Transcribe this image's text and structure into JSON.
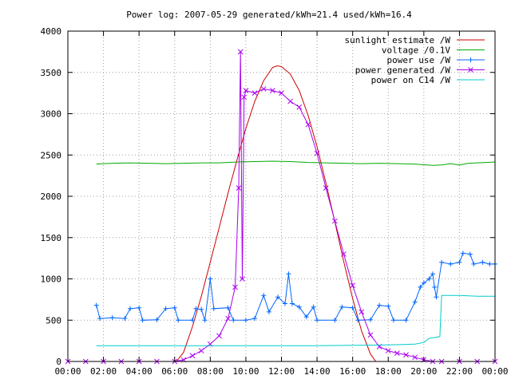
{
  "chart_data": {
    "type": "line",
    "title": "Power log: 2007-05-29 generated/kWh=21.4 used/kWh=16.4",
    "xlabel": "",
    "ylabel": "",
    "x_range_hours": [
      0,
      24
    ],
    "ylim": [
      0,
      4000
    ],
    "grid": true,
    "legend_position": "top-right",
    "x_ticks": [
      {
        "hour": 0,
        "label": "00:00"
      },
      {
        "hour": 2,
        "label": "02:00"
      },
      {
        "hour": 4,
        "label": "04:00"
      },
      {
        "hour": 6,
        "label": "06:00"
      },
      {
        "hour": 8,
        "label": "08:00"
      },
      {
        "hour": 10,
        "label": "10:00"
      },
      {
        "hour": 12,
        "label": "12:00"
      },
      {
        "hour": 14,
        "label": "14:00"
      },
      {
        "hour": 16,
        "label": "16:00"
      },
      {
        "hour": 18,
        "label": "18:00"
      },
      {
        "hour": 20,
        "label": "20:00"
      },
      {
        "hour": 22,
        "label": "22:00"
      },
      {
        "hour": 24,
        "label": "00:00"
      }
    ],
    "y_ticks": [
      {
        "value": 0,
        "label": "0"
      },
      {
        "value": 500,
        "label": "500"
      },
      {
        "value": 1000,
        "label": "1000"
      },
      {
        "value": 1500,
        "label": "1500"
      },
      {
        "value": 2000,
        "label": "2000"
      },
      {
        "value": 2500,
        "label": "2500"
      },
      {
        "value": 3000,
        "label": "3000"
      },
      {
        "value": 3500,
        "label": "3500"
      },
      {
        "value": 4000,
        "label": "4000"
      }
    ],
    "series": [
      {
        "name": "sunlight estimate /W",
        "color": "#cc0000",
        "marker": "none",
        "points": [
          [
            6.1,
            0
          ],
          [
            6.5,
            110
          ],
          [
            7.0,
            420
          ],
          [
            7.5,
            790
          ],
          [
            8.0,
            1200
          ],
          [
            8.5,
            1620
          ],
          [
            9.0,
            2040
          ],
          [
            9.5,
            2440
          ],
          [
            10.0,
            2820
          ],
          [
            10.5,
            3150
          ],
          [
            11.0,
            3400
          ],
          [
            11.5,
            3560
          ],
          [
            11.75,
            3580
          ],
          [
            12.0,
            3570
          ],
          [
            12.5,
            3480
          ],
          [
            13.0,
            3280
          ],
          [
            13.5,
            2980
          ],
          [
            14.0,
            2600
          ],
          [
            14.5,
            2160
          ],
          [
            15.0,
            1690
          ],
          [
            15.5,
            1210
          ],
          [
            16.0,
            760
          ],
          [
            16.5,
            370
          ],
          [
            17.0,
            90
          ],
          [
            17.3,
            0
          ]
        ]
      },
      {
        "name": "voltage /0.1V",
        "color": "#00aa00",
        "marker": "none",
        "points": [
          [
            1.6,
            2390
          ],
          [
            2.5,
            2400
          ],
          [
            3.5,
            2405
          ],
          [
            4.5,
            2400
          ],
          [
            5.5,
            2395
          ],
          [
            6.5,
            2400
          ],
          [
            7.5,
            2405
          ],
          [
            8.5,
            2405
          ],
          [
            9.5,
            2415
          ],
          [
            10.5,
            2420
          ],
          [
            11.5,
            2425
          ],
          [
            12.5,
            2420
          ],
          [
            13.5,
            2410
          ],
          [
            14.5,
            2405
          ],
          [
            15.5,
            2400
          ],
          [
            16.5,
            2395
          ],
          [
            17.5,
            2400
          ],
          [
            18.5,
            2395
          ],
          [
            19.5,
            2390
          ],
          [
            20.5,
            2375
          ],
          [
            21.0,
            2380
          ],
          [
            21.5,
            2395
          ],
          [
            22.0,
            2380
          ],
          [
            22.5,
            2400
          ],
          [
            23.5,
            2410
          ],
          [
            24.0,
            2415
          ]
        ]
      },
      {
        "name": "power use /W",
        "color": "#0066ff",
        "marker": "plus",
        "points": [
          [
            1.6,
            680
          ],
          [
            1.8,
            520
          ],
          [
            2.5,
            530
          ],
          [
            3.2,
            520
          ],
          [
            3.5,
            640
          ],
          [
            4.0,
            650
          ],
          [
            4.2,
            500
          ],
          [
            5.0,
            505
          ],
          [
            5.5,
            640
          ],
          [
            6.0,
            650
          ],
          [
            6.2,
            500
          ],
          [
            7.0,
            500
          ],
          [
            7.2,
            640
          ],
          [
            7.5,
            630
          ],
          [
            7.7,
            500
          ],
          [
            8.0,
            1000
          ],
          [
            8.2,
            640
          ],
          [
            9.0,
            650
          ],
          [
            9.3,
            500
          ],
          [
            10.0,
            500
          ],
          [
            10.5,
            520
          ],
          [
            11.0,
            800
          ],
          [
            11.3,
            600
          ],
          [
            11.8,
            780
          ],
          [
            12.2,
            700
          ],
          [
            12.4,
            1060
          ],
          [
            12.6,
            700
          ],
          [
            13.0,
            660
          ],
          [
            13.4,
            540
          ],
          [
            13.8,
            660
          ],
          [
            14.0,
            500
          ],
          [
            15.0,
            500
          ],
          [
            15.4,
            660
          ],
          [
            16.0,
            650
          ],
          [
            16.3,
            500
          ],
          [
            17.0,
            505
          ],
          [
            17.5,
            680
          ],
          [
            18.0,
            670
          ],
          [
            18.3,
            500
          ],
          [
            19.0,
            500
          ],
          [
            19.5,
            720
          ],
          [
            19.8,
            900
          ],
          [
            20.0,
            950
          ],
          [
            20.3,
            1000
          ],
          [
            20.5,
            1060
          ],
          [
            20.6,
            900
          ],
          [
            20.7,
            780
          ],
          [
            21.0,
            1200
          ],
          [
            21.5,
            1180
          ],
          [
            22.0,
            1200
          ],
          [
            22.2,
            1310
          ],
          [
            22.6,
            1300
          ],
          [
            22.8,
            1180
          ],
          [
            23.3,
            1200
          ],
          [
            23.7,
            1180
          ],
          [
            24.0,
            1180
          ]
        ]
      },
      {
        "name": "power generated /W",
        "color": "#aa00ee",
        "marker": "cross",
        "points": [
          [
            0,
            0
          ],
          [
            1.0,
            0
          ],
          [
            2.0,
            0
          ],
          [
            3.0,
            0
          ],
          [
            4.0,
            0
          ],
          [
            5.0,
            0
          ],
          [
            6.0,
            0
          ],
          [
            6.5,
            20
          ],
          [
            7.0,
            70
          ],
          [
            7.5,
            130
          ],
          [
            8.0,
            210
          ],
          [
            8.5,
            310
          ],
          [
            9.0,
            520
          ],
          [
            9.4,
            900
          ],
          [
            9.6,
            2100
          ],
          [
            9.7,
            3750
          ],
          [
            9.8,
            1000
          ],
          [
            9.9,
            3200
          ],
          [
            10.0,
            3280
          ],
          [
            10.5,
            3250
          ],
          [
            11.0,
            3300
          ],
          [
            11.5,
            3280
          ],
          [
            12.0,
            3250
          ],
          [
            12.5,
            3150
          ],
          [
            13.0,
            3080
          ],
          [
            13.5,
            2870
          ],
          [
            14.0,
            2520
          ],
          [
            14.5,
            2100
          ],
          [
            15.0,
            1700
          ],
          [
            15.5,
            1300
          ],
          [
            16.0,
            920
          ],
          [
            16.5,
            600
          ],
          [
            17.0,
            320
          ],
          [
            17.5,
            180
          ],
          [
            18.0,
            130
          ],
          [
            18.5,
            100
          ],
          [
            19.0,
            80
          ],
          [
            19.5,
            50
          ],
          [
            20.0,
            20
          ],
          [
            20.5,
            0
          ],
          [
            21.0,
            0
          ],
          [
            22.0,
            0
          ],
          [
            23.0,
            0
          ],
          [
            24.0,
            0
          ]
        ]
      },
      {
        "name": "power on C14 /W",
        "color": "#00cccc",
        "marker": "none",
        "points": [
          [
            1.6,
            190
          ],
          [
            4.0,
            190
          ],
          [
            6.0,
            190
          ],
          [
            8.0,
            190
          ],
          [
            10.0,
            190
          ],
          [
            12.0,
            190
          ],
          [
            14.0,
            190
          ],
          [
            16.0,
            195
          ],
          [
            18.0,
            200
          ],
          [
            19.5,
            210
          ],
          [
            20.0,
            230
          ],
          [
            20.3,
            280
          ],
          [
            20.6,
            290
          ],
          [
            20.9,
            300
          ],
          [
            21.0,
            800
          ],
          [
            22.0,
            800
          ],
          [
            23.0,
            790
          ],
          [
            24.0,
            790
          ]
        ]
      }
    ]
  }
}
